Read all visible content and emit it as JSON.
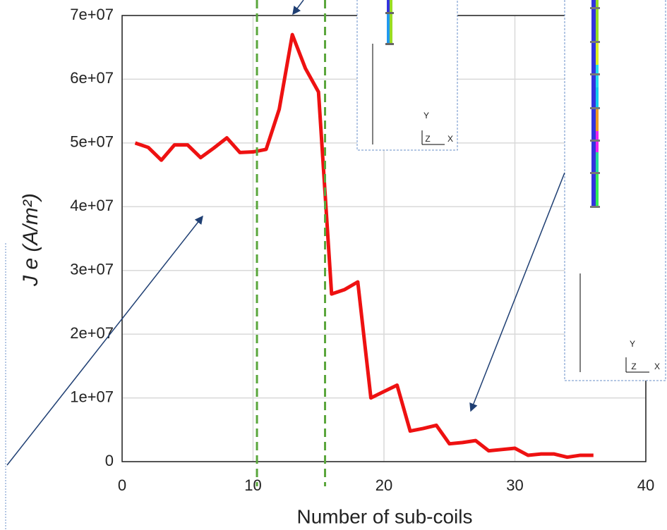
{
  "chart_data": {
    "type": "line",
    "xlabel": "Number of sub-coils",
    "ylabel": "J e (A/m²)",
    "x": [
      1,
      2,
      3,
      4,
      5,
      6,
      7,
      8,
      9,
      10,
      11,
      12,
      13,
      14,
      15,
      16,
      17,
      18,
      19,
      20,
      21,
      22,
      23,
      24,
      25,
      26,
      27,
      28,
      29,
      30,
      31,
      32,
      33,
      34,
      35,
      36
    ],
    "series": [
      {
        "color": "#ee1111",
        "values": [
          50000000,
          49300000,
          47300000,
          49700000,
          49700000,
          47700000,
          49200000,
          50800000,
          48500000,
          48600000,
          49000000,
          55300000,
          67000000,
          61700000,
          58000000,
          26300000,
          27000000,
          28200000,
          10000000,
          11000000,
          12000000,
          4800000,
          5200000,
          5700000,
          2800000,
          3000000,
          3300000,
          1700000,
          1900000,
          2100000,
          1000000,
          1200000,
          1200000,
          700000,
          1000000,
          1000000
        ]
      }
    ],
    "xlim": [
      0,
      40
    ],
    "xticks": [
      0,
      10,
      20,
      30,
      40
    ],
    "ylim": [
      0,
      70000000
    ],
    "yticks": [
      0,
      {
        "value": 10000000,
        "label": "1e+07"
      },
      {
        "value": 20000000,
        "label": "2e+07"
      },
      {
        "value": 30000000,
        "label": "3e+07"
      },
      {
        "value": 40000000,
        "label": "4e+07"
      },
      {
        "value": 50000000,
        "label": "5e+07"
      },
      {
        "value": 60000000,
        "label": "6e+07"
      },
      {
        "value": 70000000,
        "label": "7e+07"
      }
    ],
    "grid": true,
    "vlines": [
      10.3,
      15.5
    ],
    "vline_color": "#5aa63c",
    "insets": [
      {
        "labels": [
          "Y",
          "Z",
          "X"
        ]
      },
      {
        "labels": [
          "Y",
          "Z",
          "X"
        ]
      }
    ]
  }
}
